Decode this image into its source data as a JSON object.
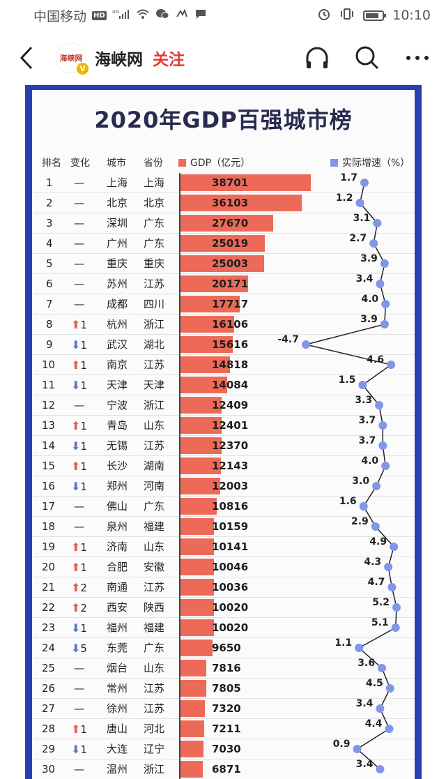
{
  "status_bar": {
    "carrier": "中国移动",
    "hd": "HD",
    "network": "4G",
    "time": "10:10"
  },
  "nav": {
    "account_name": "海峡网",
    "follow_label": "关注",
    "avatar_text": "海峡网",
    "verified": "V"
  },
  "chart_data": {
    "type": "table",
    "title": "2020年GDP百强城市榜",
    "columns": [
      "排名",
      "变化",
      "城市",
      "省份",
      "GDP（亿元）",
      "实际增速（%）"
    ],
    "gdp_unit": "亿元",
    "gdp_max": 38701,
    "growth_range": [
      -4.7,
      5.2
    ],
    "colors": {
      "bar": "#ee6a58",
      "line": "#222222",
      "point": "#7f97e6",
      "up": "#e45a52",
      "down": "#5d72c9",
      "frame": "#2c3db0"
    },
    "rows": [
      {
        "rank": "1",
        "change": "—",
        "city": "上海",
        "province": "上海",
        "gdp": 38701,
        "growth": 1.7
      },
      {
        "rank": "2",
        "change": "—",
        "city": "北京",
        "province": "北京",
        "gdp": 36103,
        "growth": 1.2
      },
      {
        "rank": "3",
        "change": "—",
        "city": "深圳",
        "province": "广东",
        "gdp": 27670,
        "growth": 3.1
      },
      {
        "rank": "4",
        "change": "—",
        "city": "广州",
        "province": "广东",
        "gdp": 25019,
        "growth": 2.7
      },
      {
        "rank": "5",
        "change": "—",
        "city": "重庆",
        "province": "重庆",
        "gdp": 25003,
        "growth": 3.9
      },
      {
        "rank": "6",
        "change": "—",
        "city": "苏州",
        "province": "江苏",
        "gdp": 20171,
        "growth": 3.4
      },
      {
        "rank": "7",
        "change": "—",
        "city": "成都",
        "province": "四川",
        "gdp": 17717,
        "growth": 4.0
      },
      {
        "rank": "8",
        "change": "1",
        "dir": "up",
        "city": "杭州",
        "province": "浙江",
        "gdp": 16106,
        "growth": 3.9
      },
      {
        "rank": "9",
        "change": "1",
        "dir": "down",
        "city": "武汉",
        "province": "湖北",
        "gdp": 15616,
        "growth": -4.7
      },
      {
        "rank": "10",
        "change": "1",
        "dir": "up",
        "city": "南京",
        "province": "江苏",
        "gdp": 14818,
        "growth": 4.6
      },
      {
        "rank": "11",
        "change": "1",
        "dir": "down",
        "city": "天津",
        "province": "天津",
        "gdp": 14084,
        "growth": 1.5
      },
      {
        "rank": "12",
        "change": "—",
        "city": "宁波",
        "province": "浙江",
        "gdp": 12409,
        "growth": 3.3
      },
      {
        "rank": "13",
        "change": "1",
        "dir": "up",
        "city": "青岛",
        "province": "山东",
        "gdp": 12401,
        "growth": 3.7
      },
      {
        "rank": "14",
        "change": "1",
        "dir": "down",
        "city": "无锡",
        "province": "江苏",
        "gdp": 12370,
        "growth": 3.7
      },
      {
        "rank": "15",
        "change": "1",
        "dir": "up",
        "city": "长沙",
        "province": "湖南",
        "gdp": 12143,
        "growth": 4.0
      },
      {
        "rank": "16",
        "change": "1",
        "dir": "down",
        "city": "郑州",
        "province": "河南",
        "gdp": 12003,
        "growth": 3.0
      },
      {
        "rank": "17",
        "change": "—",
        "city": "佛山",
        "province": "广东",
        "gdp": 10816,
        "growth": 1.6
      },
      {
        "rank": "18",
        "change": "—",
        "city": "泉州",
        "province": "福建",
        "gdp": 10159,
        "growth": 2.9
      },
      {
        "rank": "19",
        "change": "1",
        "dir": "up",
        "city": "济南",
        "province": "山东",
        "gdp": 10141,
        "growth": 4.9
      },
      {
        "rank": "20",
        "change": "1",
        "dir": "up",
        "city": "合肥",
        "province": "安徽",
        "gdp": 10046,
        "growth": 4.3
      },
      {
        "rank": "21",
        "change": "2",
        "dir": "up",
        "city": "南通",
        "province": "江苏",
        "gdp": 10036,
        "growth": 4.7
      },
      {
        "rank": "22",
        "change": "2",
        "dir": "up",
        "city": "西安",
        "province": "陕西",
        "gdp": 10020,
        "growth": 5.2
      },
      {
        "rank": "23",
        "change": "1",
        "dir": "down",
        "city": "福州",
        "province": "福建",
        "gdp": 10020,
        "growth": 5.1
      },
      {
        "rank": "24",
        "change": "5",
        "dir": "down",
        "city": "东莞",
        "province": "广东",
        "gdp": 9650,
        "growth": 1.1
      },
      {
        "rank": "25",
        "change": "—",
        "city": "烟台",
        "province": "山东",
        "gdp": 7816,
        "growth": 3.6
      },
      {
        "rank": "26",
        "change": "—",
        "city": "常州",
        "province": "江苏",
        "gdp": 7805,
        "growth": 4.5
      },
      {
        "rank": "27",
        "change": "—",
        "city": "徐州",
        "province": "江苏",
        "gdp": 7320,
        "growth": 3.4
      },
      {
        "rank": "28",
        "change": "1",
        "dir": "up",
        "city": "唐山",
        "province": "河北",
        "gdp": 7211,
        "growth": 4.4
      },
      {
        "rank": "29",
        "change": "1",
        "dir": "down",
        "city": "大连",
        "province": "辽宁",
        "gdp": 7030,
        "growth": 0.9
      },
      {
        "rank": "30",
        "change": "—",
        "city": "温州",
        "province": "浙江",
        "gdp": 6871,
        "growth": 3.4
      }
    ]
  }
}
